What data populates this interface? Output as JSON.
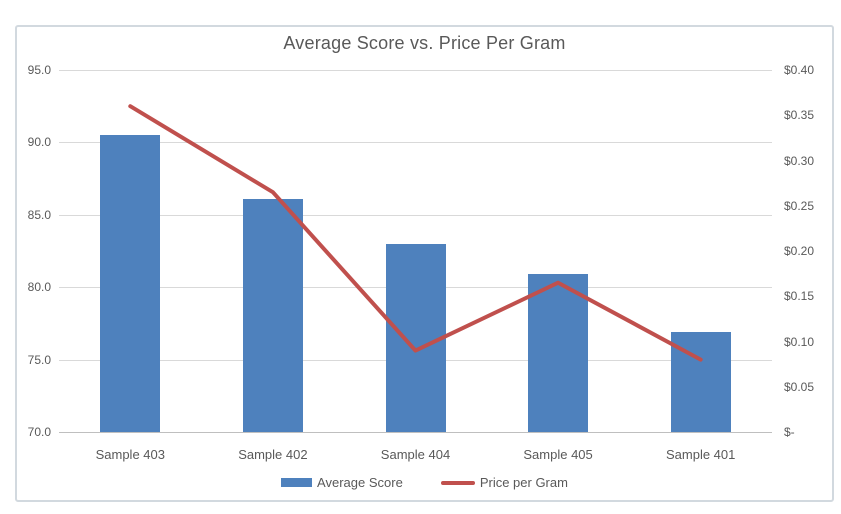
{
  "chart_data": {
    "type": "bar",
    "subtype": "combo-bar-line",
    "title": "Average Score vs. Price Per Gram",
    "categories": [
      "Sample 403",
      "Sample 402",
      "Sample 404",
      "Sample 405",
      "Sample 401"
    ],
    "series": [
      {
        "name": "Average Score",
        "render": "bar",
        "axis": "left",
        "color": "#4E81BD",
        "values": [
          90.5,
          86.1,
          83.0,
          80.9,
          76.9
        ]
      },
      {
        "name": "Price per Gram",
        "render": "line",
        "axis": "right",
        "color": "#C0504D",
        "values": [
          0.36,
          0.265,
          0.09,
          0.165,
          0.08
        ]
      }
    ],
    "left_axis": {
      "min": 70.0,
      "max": 95.0,
      "step": 5.0,
      "tick_labels_top_to_bottom": [
        "95.0",
        "90.0",
        "85.0",
        "80.0",
        "75.0",
        "70.0"
      ]
    },
    "right_axis": {
      "min": 0.0,
      "max": 0.4,
      "step": 0.05,
      "tick_labels_top_to_bottom": [
        "$0.40",
        "$0.35",
        "$0.30",
        "$0.25",
        "$0.20",
        "$0.15",
        "$0.10",
        "$0.05",
        "$-"
      ]
    },
    "grid": true,
    "legend_position": "bottom",
    "legend": [
      "Average Score",
      "Price per Gram"
    ]
  },
  "colors": {
    "bar_fill": "#4E81BD",
    "line_stroke": "#C0504D",
    "text": "#595959",
    "gridline": "#D9D9D9",
    "axis_line": "#BFBFBF",
    "frame_border": "#D2D9DF",
    "background": "#FFFFFF"
  }
}
